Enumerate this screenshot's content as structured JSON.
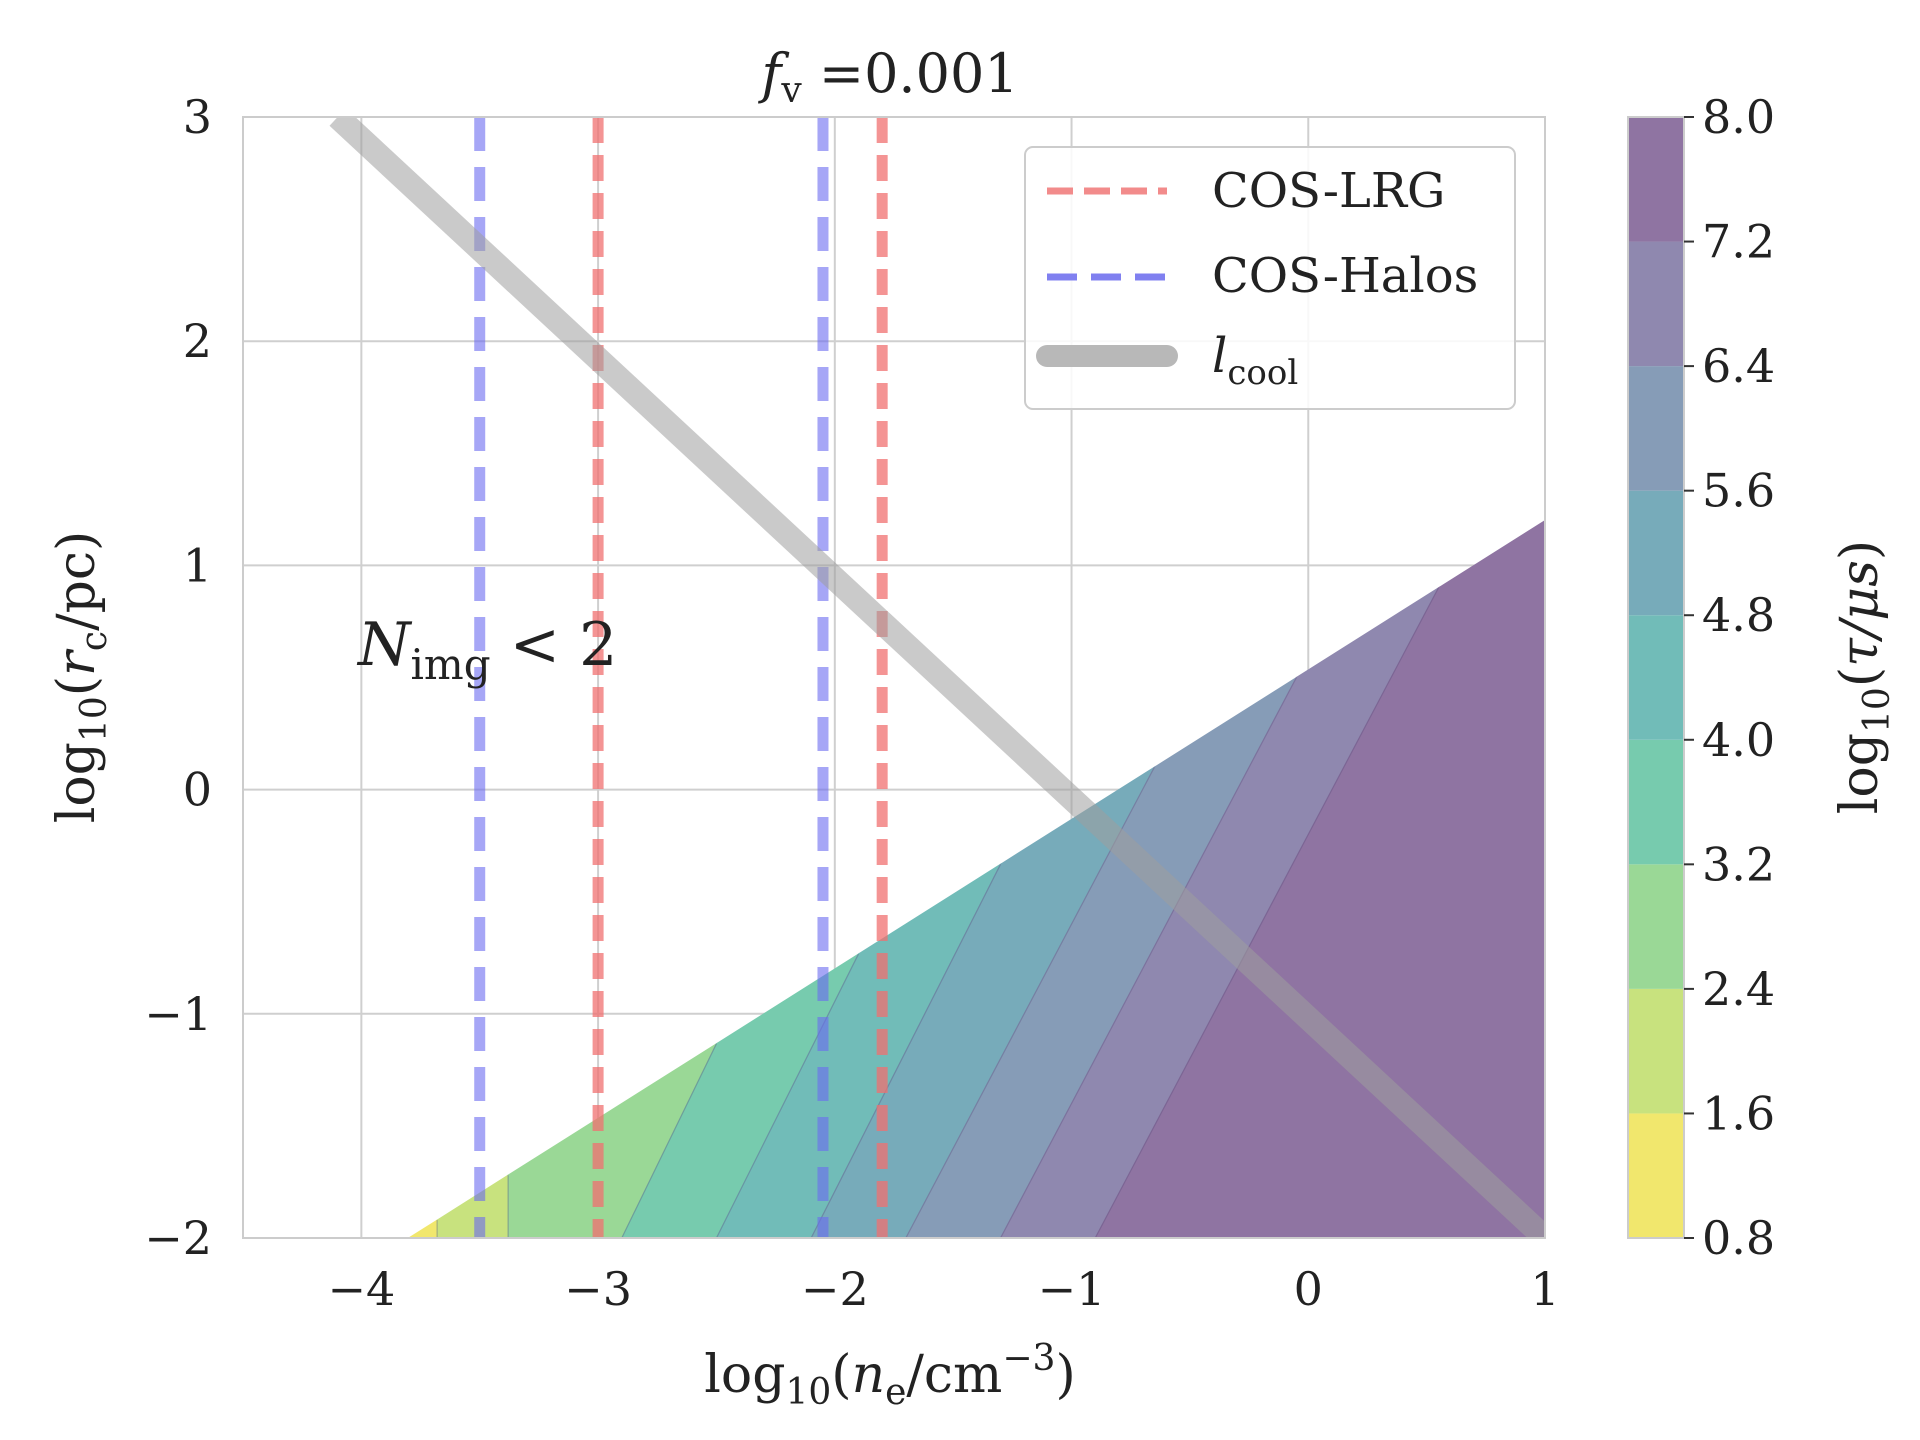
{
  "chart_data": {
    "type": "contourf",
    "title": "f_v =0.001",
    "title_parts": {
      "var": "f",
      "sub": "v",
      "rest": " =0.001"
    },
    "xlabel": "log10(n_e/cm^-3)",
    "ylabel": "log10(r_c/pc)",
    "xlim": [
      -4.5,
      1
    ],
    "ylim": [
      -2,
      3
    ],
    "xticks": [
      -4,
      -3,
      -2,
      -1,
      0,
      1
    ],
    "yticks": [
      -2,
      -1,
      0,
      1,
      2,
      3
    ],
    "xtick_labels": [
      "−4",
      "−3",
      "−2",
      "−1",
      "0",
      "1"
    ],
    "ytick_labels": [
      "−2",
      "−1",
      "0",
      "1",
      "2",
      "3"
    ],
    "grid": true,
    "region_boundary": {
      "description": "filled region lies below line",
      "x": [
        -3.8,
        1.0
      ],
      "y": [
        -2.0,
        1.2
      ]
    },
    "contour_levels": [
      0.8,
      1.6,
      2.4,
      3.2,
      4.0,
      4.8,
      5.6,
      6.4,
      7.2,
      8.0
    ],
    "band_colors": [
      "#f1e76d",
      "#c8e27e",
      "#9ad896",
      "#77cbae",
      "#71bcb8",
      "#77abba",
      "#869cb7",
      "#8f88af",
      "#8f74a2"
    ],
    "contour_lines": [
      {
        "bottom_x": -3.68,
        "top_x": -3.68
      },
      {
        "bottom_x": -3.38,
        "top_x": -3.38
      },
      {
        "bottom_x": -2.9,
        "top_x": -2.5
      },
      {
        "bottom_x": -2.5,
        "top_x": -1.9
      },
      {
        "bottom_x": -2.1,
        "top_x": -1.3
      },
      {
        "bottom_x": -1.7,
        "top_x": -0.65
      },
      {
        "bottom_x": -1.3,
        "top_x": -0.05
      },
      {
        "bottom_x": -0.9,
        "top_x": 0.55
      }
    ],
    "vertical_lines": [
      {
        "series": "COS-Halos",
        "x": -3.5
      },
      {
        "series": "COS-Halos",
        "x": -2.05
      },
      {
        "series": "COS-LRG",
        "x": -3.0
      },
      {
        "series": "COS-LRG",
        "x": -1.8
      }
    ],
    "l_cool_line": {
      "x": [
        -4.1,
        1.0
      ],
      "y": [
        3.0,
        -2.0
      ]
    },
    "annotation": {
      "text": "N_img < 2",
      "var": "N",
      "sub": "img",
      "rest": " < 2",
      "x": -4.0,
      "y": 0.65
    },
    "legend": {
      "position": "top-right",
      "entries": [
        {
          "label": "COS-LRG",
          "color": "#f28b8b",
          "style": "dashed"
        },
        {
          "label": "COS-Halos",
          "color": "#8080f0",
          "style": "dashed"
        },
        {
          "label": "l_cool",
          "var": "l",
          "sub": "cool",
          "color": "#b8b8b8",
          "style": "solid-thick"
        }
      ]
    },
    "colorbar": {
      "label": "log10(τ/μs)",
      "ticks": [
        0.8,
        1.6,
        2.4,
        3.2,
        4.0,
        4.8,
        5.6,
        6.4,
        7.2,
        8.0
      ],
      "tick_labels": [
        "0.8",
        "1.6",
        "2.4",
        "3.2",
        "4.0",
        "4.8",
        "5.6",
        "6.4",
        "7.2",
        "8.0"
      ]
    }
  }
}
